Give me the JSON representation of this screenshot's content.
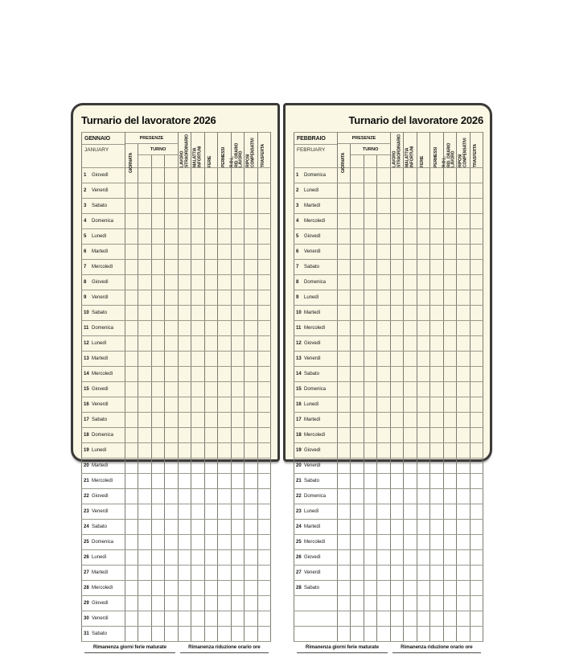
{
  "colors": {
    "page_background": "#faf7e4",
    "cover_border": "#3b3a38",
    "grid_line_vertical": "#7c7b72",
    "grid_line_horizontal": "#9a998c",
    "text": "#151513"
  },
  "table_labels": {
    "presenze": "PRESENZE",
    "turno": "TURNO",
    "giornata": "GIORNATA",
    "category_columns": [
      "LAVORO\nSTRAORDINARIO",
      "MALATTIA\nINFORTUNI",
      "FERIE",
      "PERMESSI",
      "R.O.L.\nRID. ORARIO\nLAVORO",
      "RIPOSI\nCOMPENSATIVI",
      "TRASFERTA"
    ],
    "footer_left": "Rimanenza giorni ferie maturate",
    "footer_right": "Rimanenza riduzione orario ore"
  },
  "spread": {
    "left_page": {
      "title": "Turnario del lavoratore 2026",
      "month": "GENNAIO",
      "month_translated": "JANUARY",
      "blank_rows": 0,
      "days": [
        {
          "num": "1",
          "name": "Giovedì"
        },
        {
          "num": "2",
          "name": "Venerdì"
        },
        {
          "num": "3",
          "name": "Sabato"
        },
        {
          "num": "4",
          "name": "Domenica"
        },
        {
          "num": "5",
          "name": "Lunedì"
        },
        {
          "num": "6",
          "name": "Martedì"
        },
        {
          "num": "7",
          "name": "Mercoledì"
        },
        {
          "num": "8",
          "name": "Giovedì"
        },
        {
          "num": "9",
          "name": "Venerdì"
        },
        {
          "num": "10",
          "name": "Sabato"
        },
        {
          "num": "11",
          "name": "Domenica"
        },
        {
          "num": "12",
          "name": "Lunedì"
        },
        {
          "num": "13",
          "name": "Martedì"
        },
        {
          "num": "14",
          "name": "Mercoledì"
        },
        {
          "num": "15",
          "name": "Giovedì"
        },
        {
          "num": "16",
          "name": "Venerdì"
        },
        {
          "num": "17",
          "name": "Sabato"
        },
        {
          "num": "18",
          "name": "Domenica"
        },
        {
          "num": "19",
          "name": "Lunedì"
        },
        {
          "num": "20",
          "name": "Martedì"
        },
        {
          "num": "21",
          "name": "Mercoledì"
        },
        {
          "num": "22",
          "name": "Giovedì"
        },
        {
          "num": "23",
          "name": "Venerdì"
        },
        {
          "num": "24",
          "name": "Sabato"
        },
        {
          "num": "25",
          "name": "Domenica"
        },
        {
          "num": "26",
          "name": "Lunedì"
        },
        {
          "num": "27",
          "name": "Martedì"
        },
        {
          "num": "28",
          "name": "Mercoledì"
        },
        {
          "num": "29",
          "name": "Giovedì"
        },
        {
          "num": "30",
          "name": "Venerdì"
        },
        {
          "num": "31",
          "name": "Sabato"
        }
      ]
    },
    "right_page": {
      "title": "Turnario del lavoratore 2026",
      "month": "FEBBRAIO",
      "month_translated": "FEBRUARY",
      "blank_rows": 3,
      "days": [
        {
          "num": "1",
          "name": "Domenica"
        },
        {
          "num": "2",
          "name": "Lunedì"
        },
        {
          "num": "3",
          "name": "Martedì"
        },
        {
          "num": "4",
          "name": "Mercoledì"
        },
        {
          "num": "5",
          "name": "Giovedì"
        },
        {
          "num": "6",
          "name": "Venerdì"
        },
        {
          "num": "7",
          "name": "Sabato"
        },
        {
          "num": "8",
          "name": "Domenica"
        },
        {
          "num": "9",
          "name": "Lunedì"
        },
        {
          "num": "10",
          "name": "Martedì"
        },
        {
          "num": "11",
          "name": "Mercoledì"
        },
        {
          "num": "12",
          "name": "Giovedì"
        },
        {
          "num": "13",
          "name": "Venerdì"
        },
        {
          "num": "14",
          "name": "Sabato"
        },
        {
          "num": "15",
          "name": "Domenica"
        },
        {
          "num": "16",
          "name": "Lunedì"
        },
        {
          "num": "17",
          "name": "Martedì"
        },
        {
          "num": "18",
          "name": "Mercoledì"
        },
        {
          "num": "19",
          "name": "Giovedì"
        },
        {
          "num": "20",
          "name": "Venerdì"
        },
        {
          "num": "21",
          "name": "Sabato"
        },
        {
          "num": "22",
          "name": "Domenica"
        },
        {
          "num": "23",
          "name": "Lunedì"
        },
        {
          "num": "24",
          "name": "Martedì"
        },
        {
          "num": "25",
          "name": "Mercoledì"
        },
        {
          "num": "26",
          "name": "Giovedì"
        },
        {
          "num": "27",
          "name": "Venerdì"
        },
        {
          "num": "28",
          "name": "Sabato"
        }
      ]
    }
  }
}
